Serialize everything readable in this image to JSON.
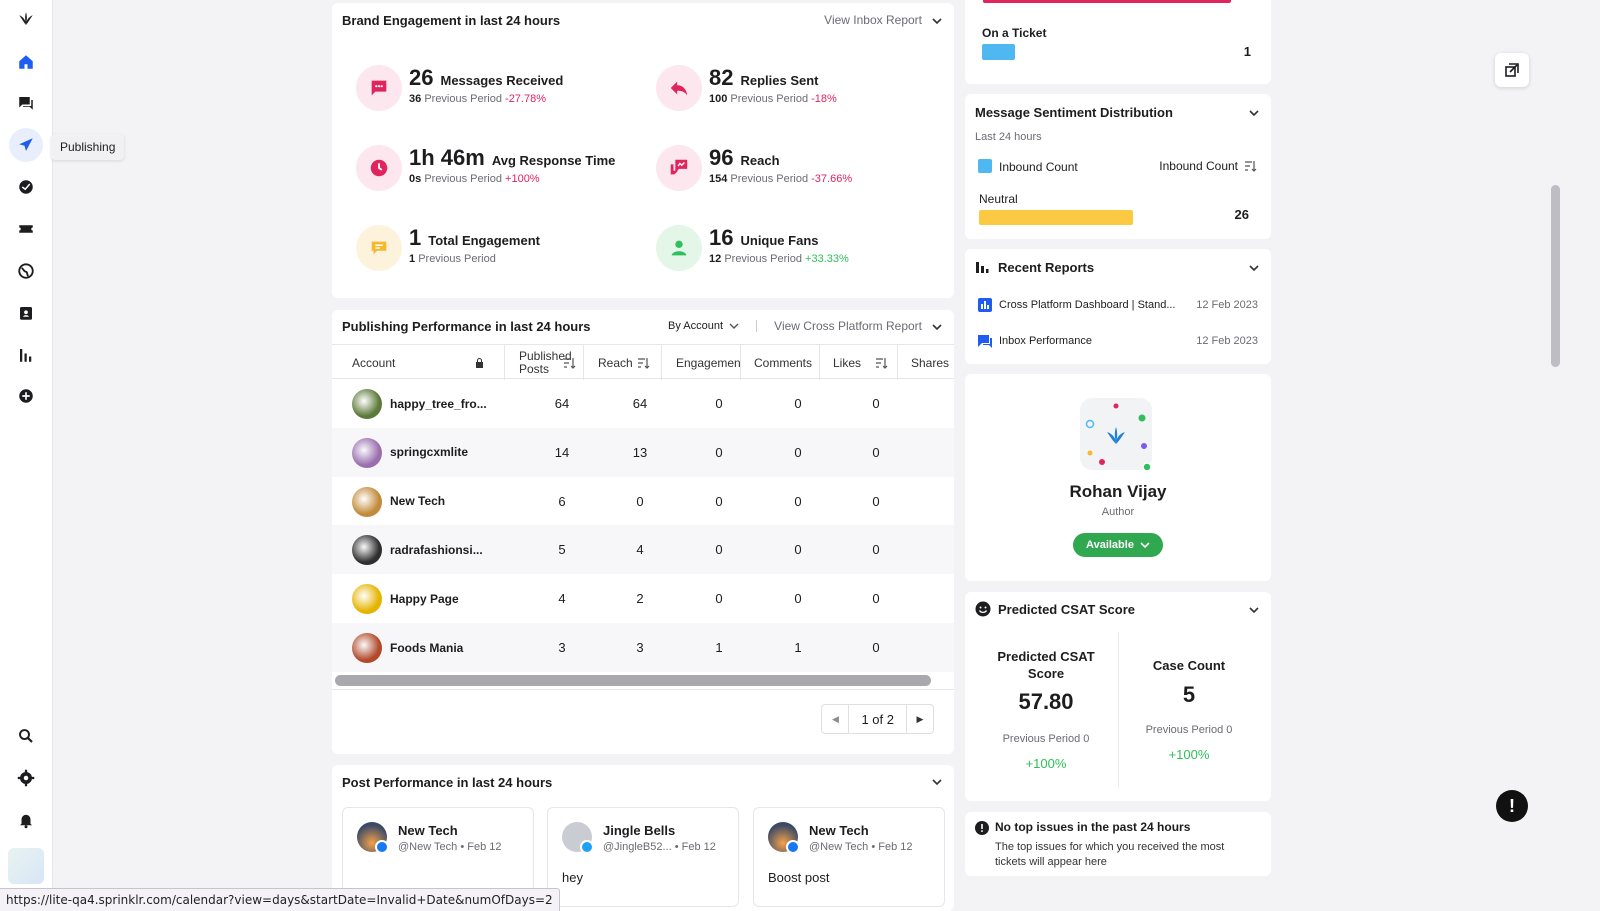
{
  "nav": {
    "tooltip": "Publishing",
    "icons": [
      "logo-icon",
      "home-icon",
      "inbox-icon",
      "publishing-icon",
      "tasks-icon",
      "tickets-icon",
      "globe-icon",
      "calendar-icon",
      "reports-icon",
      "add-icon",
      "search-icon",
      "settings-icon",
      "notifications-icon"
    ]
  },
  "brand_engagement": {
    "title": "Brand Engagement in last 24 hours",
    "action": "View Inbox Report",
    "metrics": [
      {
        "value": "26",
        "label": "Messages Received",
        "prev_value": "36",
        "prev_label": "Previous Period",
        "change": "-27.78%",
        "trend": "neg",
        "icon": "message-icon",
        "color": "#e0245e"
      },
      {
        "value": "82",
        "label": "Replies Sent",
        "prev_value": "100",
        "prev_label": "Previous Period",
        "change": "-18%",
        "trend": "neg",
        "icon": "reply-icon",
        "color": "#e0245e"
      },
      {
        "value": "1h 46m",
        "label": "Avg Response Time",
        "prev_value": "0s",
        "prev_label": "Previous Period",
        "change": "+100%",
        "trend": "neg",
        "icon": "clock-icon",
        "color": "#e0245e"
      },
      {
        "value": "96",
        "label": "Reach",
        "prev_value": "154",
        "prev_label": "Previous Period",
        "change": "-37.66%",
        "trend": "neg",
        "icon": "reach-icon",
        "color": "#e0245e"
      },
      {
        "value": "1",
        "label": "Total Engagement",
        "prev_value": "1",
        "prev_label": "Previous Period",
        "change": "",
        "trend": "none",
        "icon": "engagement-icon",
        "color": "#f5b82e"
      },
      {
        "value": "16",
        "label": "Unique Fans",
        "prev_value": "12",
        "prev_label": "Previous Period",
        "change": "+33.33%",
        "trend": "pos",
        "icon": "user-icon",
        "color": "#2fbf5b"
      }
    ]
  },
  "publishing": {
    "title": "Publishing Performance in last 24 hours",
    "by": "By Account",
    "action": "View Cross Platform Report",
    "columns": [
      "Account",
      "Published Posts",
      "Reach",
      "Engagements",
      "Comments",
      "Likes",
      "Shares"
    ],
    "rows": [
      {
        "account": "happy_tree_fro...",
        "posts": "64",
        "reach": "64",
        "eng": "0",
        "comments": "0",
        "likes": "0",
        "color": "#5c7a3a"
      },
      {
        "account": "springcxmlite",
        "posts": "14",
        "reach": "13",
        "eng": "0",
        "comments": "0",
        "likes": "0",
        "color": "#9a6fb0"
      },
      {
        "account": "New Tech",
        "posts": "6",
        "reach": "0",
        "eng": "0",
        "comments": "0",
        "likes": "0",
        "color": "#c28a3a"
      },
      {
        "account": "radrafashionsi...",
        "posts": "5",
        "reach": "4",
        "eng": "0",
        "comments": "0",
        "likes": "0",
        "color": "#2f2f2f"
      },
      {
        "account": "Happy Page",
        "posts": "4",
        "reach": "2",
        "eng": "0",
        "comments": "0",
        "likes": "0",
        "color": "#e6b400"
      },
      {
        "account": "Foods Mania",
        "posts": "3",
        "reach": "3",
        "eng": "1",
        "comments": "1",
        "likes": "0",
        "color": "#b24a2a"
      }
    ],
    "pager": "1 of 2"
  },
  "post_performance": {
    "title": "Post Performance in last 24 hours",
    "posts": [
      {
        "name": "New Tech",
        "meta": "@New Tech • Feb 12",
        "text": "",
        "network_color": "#1877f2"
      },
      {
        "name": "Jingle Bells",
        "meta": "@JingleB52... • Feb 12",
        "text": "hey",
        "network_color": "#1da1f2"
      },
      {
        "name": "New Tech",
        "meta": "@New Tech • Feb 12",
        "text": "Boost post",
        "network_color": "#1877f2"
      }
    ]
  },
  "ticket": {
    "label": "On a Ticket",
    "value": "1",
    "fraction": 0.13
  },
  "sentiment": {
    "title": "Message Sentiment Distribution",
    "subtitle": "Last 24 hours",
    "legend": "Inbound Count",
    "sort_label": "Inbound Count",
    "label": "Neutral",
    "value": "26",
    "fraction": 0.55
  },
  "reports": {
    "title": "Recent Reports",
    "items": [
      {
        "name": "Cross Platform Dashboard | Stand...",
        "date": "12 Feb 2023"
      },
      {
        "name": "Inbox Performance",
        "date": "12 Feb 2023"
      }
    ]
  },
  "profile": {
    "name": "Rohan Vijay",
    "role": "Author",
    "status": "Available"
  },
  "csat": {
    "title": "Predicted CSAT Score",
    "score_label": "Predicted CSAT Score",
    "score": "57.80",
    "score_prev": "Previous Period 0",
    "score_change": "+100%",
    "count_label": "Case Count",
    "count": "5",
    "count_prev": "Previous Period 0",
    "count_change": "+100%"
  },
  "issues": {
    "title": "No top issues in the past 24 hours",
    "text": "The top issues for which you received the most tickets will appear here"
  },
  "status_url": "https://lite-qa4.sprinklr.com/calendar?view=days&startDate=Invalid+Date&numOfDays=2"
}
